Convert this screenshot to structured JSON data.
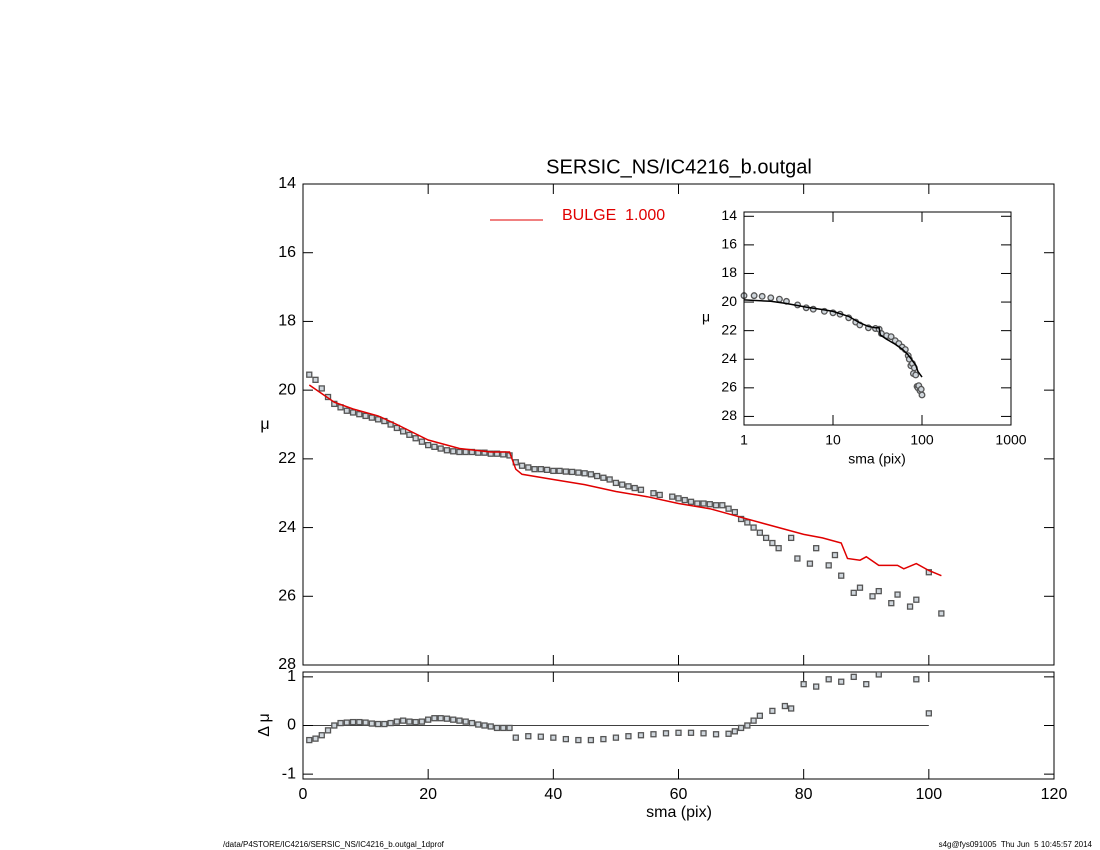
{
  "chart_data": [
    {
      "type": "scatter",
      "title": "SERSIC_NS/IC4216_b.outgal",
      "ylabel": "μ",
      "ylim": [
        28,
        14
      ],
      "yticks": [
        14,
        16,
        18,
        20,
        22,
        24,
        26,
        28
      ],
      "series": [
        {
          "style": "square",
          "color": "#555555",
          "x": [
            1,
            2,
            3,
            4,
            5,
            6,
            7,
            8,
            9,
            10,
            11,
            12,
            13,
            14,
            15,
            16,
            17,
            18,
            19,
            20,
            21,
            22,
            23,
            24,
            25,
            26,
            27,
            28,
            29,
            30,
            31,
            32,
            33,
            34,
            35,
            36,
            37,
            38,
            39,
            40,
            41,
            42,
            43,
            44,
            45,
            46,
            47,
            48,
            49,
            50,
            51,
            52,
            53,
            54,
            56,
            57,
            59,
            60,
            61,
            62,
            63,
            64,
            65,
            66,
            67,
            68,
            69,
            70,
            71,
            72,
            73,
            74,
            75,
            76,
            78,
            79,
            81,
            82,
            84,
            85,
            86,
            88,
            89,
            91,
            92,
            94,
            95,
            97,
            98,
            100,
            102
          ],
          "values": [
            19.55,
            19.7,
            19.95,
            20.2,
            20.4,
            20.5,
            20.6,
            20.65,
            20.7,
            20.75,
            20.8,
            20.85,
            20.9,
            21.0,
            21.1,
            21.2,
            21.3,
            21.4,
            21.5,
            21.6,
            21.65,
            21.7,
            21.75,
            21.78,
            21.8,
            21.8,
            21.8,
            21.82,
            21.82,
            21.85,
            21.85,
            21.87,
            21.9,
            22.1,
            22.2,
            22.25,
            22.3,
            22.3,
            22.32,
            22.35,
            22.35,
            22.37,
            22.38,
            22.4,
            22.42,
            22.45,
            22.5,
            22.55,
            22.6,
            22.7,
            22.75,
            22.8,
            22.85,
            22.9,
            23.0,
            23.05,
            23.1,
            23.15,
            23.2,
            23.25,
            23.3,
            23.3,
            23.32,
            23.35,
            23.35,
            23.45,
            23.55,
            23.75,
            23.85,
            24.0,
            24.15,
            24.3,
            24.45,
            24.6,
            24.3,
            24.9,
            25.05,
            24.6,
            25.1,
            24.8,
            25.4,
            25.9,
            25.75,
            26.0,
            25.85,
            26.2,
            25.95,
            26.3,
            26.1,
            25.3,
            26.5
          ]
        },
        {
          "name": "BULGE  1.000",
          "style": "line",
          "color": "#e00000",
          "x": [
            1,
            3,
            5,
            8,
            12,
            15,
            20,
            25,
            30,
            33,
            34,
            35,
            40,
            45,
            50,
            55,
            60,
            65,
            70,
            75,
            80,
            83,
            86,
            87,
            89,
            90,
            92,
            95,
            96,
            98,
            100,
            102
          ],
          "values": [
            19.85,
            20.1,
            20.35,
            20.55,
            20.75,
            21.0,
            21.45,
            21.7,
            21.8,
            21.8,
            22.3,
            22.45,
            22.6,
            22.75,
            22.95,
            23.1,
            23.3,
            23.45,
            23.7,
            23.95,
            24.2,
            24.3,
            24.45,
            24.9,
            24.95,
            24.85,
            25.1,
            25.1,
            25.2,
            25.05,
            25.25,
            25.4
          ]
        }
      ]
    },
    {
      "type": "scatter",
      "xlabel": "sma (pix)",
      "ylabel": "Δ μ",
      "xlim": [
        0,
        120
      ],
      "xticks": [
        0,
        20,
        40,
        60,
        80,
        100,
        120
      ],
      "ylim": [
        -1.1,
        1.1
      ],
      "yticks": [
        -1,
        0,
        1
      ],
      "reference_line": 0,
      "series": [
        {
          "style": "square",
          "color": "#555555",
          "x": [
            1,
            2,
            3,
            4,
            5,
            6,
            7,
            8,
            9,
            10,
            11,
            12,
            13,
            14,
            15,
            16,
            17,
            18,
            19,
            20,
            21,
            22,
            23,
            24,
            25,
            26,
            27,
            28,
            29,
            30,
            31,
            32,
            33,
            34,
            36,
            38,
            40,
            42,
            44,
            46,
            48,
            50,
            52,
            54,
            56,
            58,
            60,
            62,
            64,
            66,
            68,
            69,
            70,
            71,
            72,
            73,
            75,
            77,
            78,
            80,
            82,
            84,
            86,
            88,
            90,
            92,
            98,
            100
          ],
          "values": [
            -0.3,
            -0.27,
            -0.2,
            -0.1,
            0.0,
            0.05,
            0.06,
            0.07,
            0.07,
            0.06,
            0.04,
            0.03,
            0.03,
            0.05,
            0.08,
            0.1,
            0.08,
            0.07,
            0.08,
            0.12,
            0.15,
            0.15,
            0.14,
            0.12,
            0.1,
            0.08,
            0.05,
            0.02,
            0.0,
            -0.02,
            -0.05,
            -0.05,
            -0.05,
            -0.25,
            -0.22,
            -0.23,
            -0.25,
            -0.28,
            -0.3,
            -0.3,
            -0.28,
            -0.25,
            -0.22,
            -0.2,
            -0.18,
            -0.16,
            -0.15,
            -0.15,
            -0.16,
            -0.18,
            -0.17,
            -0.12,
            -0.05,
            0.0,
            0.1,
            0.2,
            0.3,
            0.4,
            0.35,
            0.85,
            0.8,
            0.95,
            0.9,
            1.0,
            0.85,
            1.05,
            0.95,
            0.25
          ]
        }
      ]
    },
    {
      "type": "scatter",
      "xscale": "log",
      "xlabel": "sma (pix)",
      "ylabel": "μ",
      "xlim": [
        1,
        1000
      ],
      "xticks": [
        1,
        10,
        100,
        1000
      ],
      "ylim": [
        28.6,
        13.7
      ],
      "yticks": [
        14,
        16,
        18,
        20,
        22,
        24,
        26,
        28
      ],
      "series": [
        {
          "style": "circle",
          "color": "#555555",
          "x": [
            1,
            1.3,
            1.6,
            2,
            2.5,
            3,
            4,
            5,
            6,
            8,
            10,
            12,
            15,
            18,
            20,
            25,
            30,
            33,
            35,
            40,
            45,
            50,
            55,
            60,
            65,
            70,
            72,
            75,
            78,
            80,
            82,
            85,
            88,
            90,
            92,
            95,
            98,
            100
          ],
          "values": [
            19.55,
            19.55,
            19.6,
            19.7,
            19.8,
            19.95,
            20.2,
            20.4,
            20.5,
            20.65,
            20.75,
            20.85,
            21.1,
            21.4,
            21.6,
            21.8,
            21.85,
            21.9,
            22.2,
            22.35,
            22.42,
            22.7,
            22.9,
            23.15,
            23.32,
            23.75,
            24.0,
            24.45,
            24.3,
            25.0,
            24.6,
            25.1,
            25.9,
            26.0,
            25.85,
            26.2,
            26.1,
            26.5
          ]
        },
        {
          "style": "line",
          "color": "#000000",
          "x": [
            1,
            2,
            3,
            5,
            8,
            10,
            15,
            20,
            25,
            30,
            33,
            34,
            40,
            50,
            60,
            70,
            75,
            80,
            85,
            90,
            100
          ],
          "values": [
            19.85,
            19.95,
            20.1,
            20.35,
            20.55,
            20.65,
            21.0,
            21.45,
            21.7,
            21.8,
            21.8,
            22.3,
            22.6,
            22.95,
            23.3,
            23.7,
            23.95,
            24.2,
            24.4,
            24.85,
            25.25
          ]
        }
      ]
    }
  ],
  "footer": {
    "left": "/data/P4STORE/IC4216/SERSIC_NS/IC4216_b.outgal_1dprof",
    "right": "s4g@fys091005  Thu Jun  5 10:45:57 2014"
  }
}
